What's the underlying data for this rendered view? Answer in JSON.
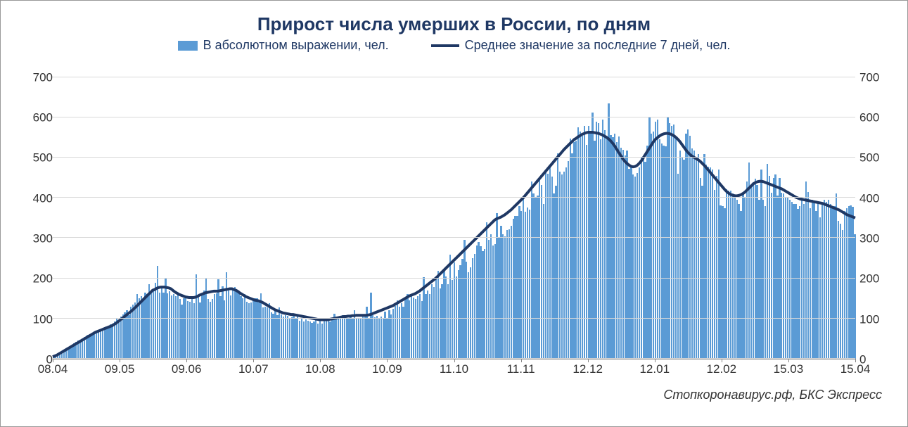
{
  "chart": {
    "type": "bar+line",
    "title": "Прирост числа умерших в России, по дням",
    "title_fontsize": 26,
    "title_color": "#1f3864",
    "legend": {
      "bar_label": "В абсолютном выражении, чел.",
      "line_label": "Среднее значение за последние 7 дней, чел.",
      "font_size": 18,
      "text_color": "#1f3864"
    },
    "source": "Стопкоронавирус.рф, БКС Экспресс",
    "background_color": "#ffffff",
    "border_color": "#999999",
    "grid_color": "#d9d9d9",
    "bar_color": "#5b9bd5",
    "line_color": "#1f3864",
    "line_width": 4,
    "y_axis": {
      "min": 0,
      "max": 750,
      "ticks": [
        0,
        100,
        200,
        300,
        400,
        500,
        600,
        700
      ],
      "font_size": 17,
      "text_color": "#333333"
    },
    "x_axis": {
      "labels": [
        "08.04",
        "09.05",
        "09.06",
        "10.07",
        "10.08",
        "10.09",
        "11.10",
        "11.11",
        "12.12",
        "12.01",
        "12.02",
        "15.03",
        "15.04"
      ],
      "font_size": 17,
      "text_color": "#333333"
    },
    "bar_values": [
      5,
      8,
      12,
      15,
      18,
      22,
      25,
      28,
      30,
      34,
      38,
      42,
      45,
      48,
      50,
      54,
      58,
      60,
      62,
      65,
      68,
      70,
      72,
      74,
      76,
      78,
      80,
      82,
      85,
      88,
      92,
      100,
      95,
      105,
      110,
      115,
      120,
      108,
      130,
      135,
      140,
      160,
      150,
      155,
      145,
      165,
      160,
      185,
      170,
      175,
      188,
      230,
      165,
      178,
      165,
      200,
      162,
      168,
      158,
      160,
      155,
      165,
      148,
      135,
      150,
      152,
      144,
      142,
      148,
      138,
      210,
      155,
      140,
      158,
      170,
      200,
      148,
      142,
      148,
      160,
      162,
      198,
      155,
      180,
      145,
      215,
      170,
      158,
      172,
      178,
      172,
      165,
      155,
      150,
      160,
      142,
      138,
      140,
      145,
      150,
      150,
      140,
      162,
      128,
      130,
      128,
      138,
      115,
      112,
      120,
      108,
      128,
      110,
      105,
      108,
      106,
      100,
      104,
      112,
      100,
      108,
      95,
      100,
      92,
      98,
      94,
      93,
      90,
      92,
      101,
      88,
      95,
      88,
      94,
      100,
      94,
      92,
      96,
      112,
      102,
      100,
      105,
      108,
      108,
      100,
      102,
      105,
      100,
      120,
      100,
      102,
      100,
      105,
      108,
      130,
      102,
      165,
      108,
      104,
      106,
      102,
      105,
      102,
      118,
      100,
      120,
      110,
      125,
      132,
      145,
      130,
      138,
      130,
      150,
      160,
      145,
      158,
      152,
      148,
      155,
      160,
      144,
      202,
      160,
      170,
      160,
      185,
      178,
      200,
      218,
      175,
      185,
      218,
      205,
      185,
      258,
      196,
      240,
      205,
      220,
      232,
      248,
      295,
      242,
      215,
      228,
      250,
      260,
      282,
      290,
      280,
      268,
      272,
      340,
      295,
      310,
      282,
      285,
      362,
      300,
      330,
      310,
      305,
      320,
      322,
      330,
      348,
      355,
      355,
      380,
      368,
      400,
      365,
      376,
      370,
      440,
      410,
      402,
      405,
      445,
      432,
      385,
      465,
      460,
      475,
      452,
      410,
      430,
      510,
      465,
      458,
      465,
      475,
      492,
      548,
      510,
      538,
      542,
      575,
      565,
      555,
      578,
      532,
      578,
      560,
      612,
      542,
      590,
      585,
      545,
      595,
      568,
      552,
      635,
      556,
      550,
      560,
      538,
      552,
      525,
      520,
      505,
      518,
      472,
      480,
      458,
      452,
      462,
      475,
      500,
      505,
      490,
      530,
      600,
      560,
      565,
      590,
      595,
      545,
      535,
      530,
      528,
      602,
      585,
      578,
      582,
      548,
      460,
      518,
      500,
      495,
      560,
      570,
      555,
      522,
      518,
      500,
      508,
      450,
      430,
      508,
      482,
      478,
      475,
      470,
      420,
      455,
      470,
      382,
      380,
      375,
      422,
      418,
      418,
      410,
      402,
      396,
      385,
      368,
      410,
      400,
      440,
      488,
      432,
      438,
      448,
      432,
      395,
      470,
      395,
      380,
      485,
      455,
      412,
      450,
      458,
      405,
      450,
      412,
      410,
      402,
      402,
      395,
      390,
      385,
      385,
      372,
      380,
      400,
      385,
      440,
      415,
      375,
      395,
      390,
      368,
      392,
      352,
      385,
      395,
      390,
      395,
      385,
      375,
      380,
      410,
      342,
      335,
      320,
      368,
      375,
      380,
      382,
      378,
      310
    ],
    "line_values": [
      5,
      7,
      9,
      12,
      15,
      18,
      21,
      24,
      27,
      30,
      33,
      36,
      39,
      42,
      45,
      48,
      51,
      54,
      57,
      60,
      63,
      66,
      68,
      70,
      72,
      74,
      76,
      78,
      80,
      82,
      85,
      88,
      92,
      96,
      100,
      104,
      108,
      112,
      116,
      120,
      125,
      130,
      135,
      140,
      145,
      150,
      155,
      160,
      165,
      170,
      172,
      175,
      177,
      178,
      178,
      178,
      177,
      176,
      174,
      170,
      166,
      163,
      160,
      158,
      156,
      154,
      153,
      152,
      152,
      152,
      153,
      155,
      158,
      160,
      162,
      164,
      165,
      166,
      167,
      168,
      168,
      168,
      169,
      170,
      171,
      172,
      173,
      174,
      174,
      172,
      170,
      167,
      163,
      160,
      157,
      154,
      152,
      150,
      148,
      146,
      145,
      144,
      142,
      140,
      137,
      134,
      131,
      128,
      125,
      122,
      120,
      118,
      116,
      114,
      113,
      112,
      111,
      110,
      110,
      109,
      108,
      107,
      106,
      105,
      104,
      103,
      102,
      101,
      100,
      99,
      98,
      97,
      97,
      97,
      97,
      97,
      98,
      99,
      100,
      101,
      102,
      103,
      104,
      105,
      105,
      106,
      106,
      107,
      107,
      108,
      108,
      108,
      108,
      108,
      108,
      109,
      110,
      112,
      114,
      116,
      118,
      120,
      122,
      124,
      126,
      128,
      130,
      132,
      135,
      138,
      141,
      144,
      147,
      150,
      153,
      156,
      158,
      160,
      162,
      165,
      168,
      172,
      176,
      180,
      184,
      188,
      192,
      196,
      200,
      205,
      210,
      215,
      220,
      225,
      230,
      235,
      240,
      245,
      250,
      255,
      260,
      265,
      270,
      275,
      280,
      285,
      290,
      295,
      300,
      305,
      310,
      315,
      320,
      325,
      330,
      335,
      340,
      345,
      348,
      350,
      352,
      355,
      358,
      362,
      366,
      370,
      375,
      380,
      385,
      390,
      395,
      400,
      406,
      412,
      418,
      424,
      430,
      436,
      442,
      448,
      454,
      460,
      466,
      472,
      478,
      484,
      490,
      496,
      502,
      508,
      514,
      520,
      525,
      530,
      535,
      540,
      545,
      548,
      552,
      555,
      558,
      560,
      562,
      563,
      563,
      563,
      562,
      561,
      560,
      558,
      556,
      553,
      550,
      546,
      541,
      535,
      528,
      520,
      512,
      504,
      496,
      490,
      485,
      481,
      478,
      477,
      478,
      481,
      486,
      492,
      500,
      508,
      516,
      524,
      532,
      540,
      546,
      550,
      554,
      557,
      559,
      560,
      560,
      559,
      557,
      554,
      550,
      545,
      539,
      532,
      525,
      518,
      512,
      507,
      503,
      500,
      497,
      494,
      490,
      485,
      480,
      474,
      468,
      462,
      456,
      450,
      444,
      438,
      432,
      426,
      420,
      415,
      411,
      408,
      406,
      405,
      405,
      406,
      408,
      411,
      415,
      420,
      425,
      430,
      435,
      438,
      440,
      441,
      441,
      440,
      438,
      436,
      434,
      432,
      430,
      428,
      426,
      424,
      422,
      419,
      416,
      413,
      410,
      407,
      404,
      401,
      399,
      397,
      396,
      395,
      394,
      393,
      392,
      391,
      390,
      389,
      388,
      387,
      386,
      384,
      382,
      380,
      378,
      376,
      374,
      372,
      370,
      367,
      364,
      361,
      358,
      356,
      354,
      352,
      350
    ]
  }
}
